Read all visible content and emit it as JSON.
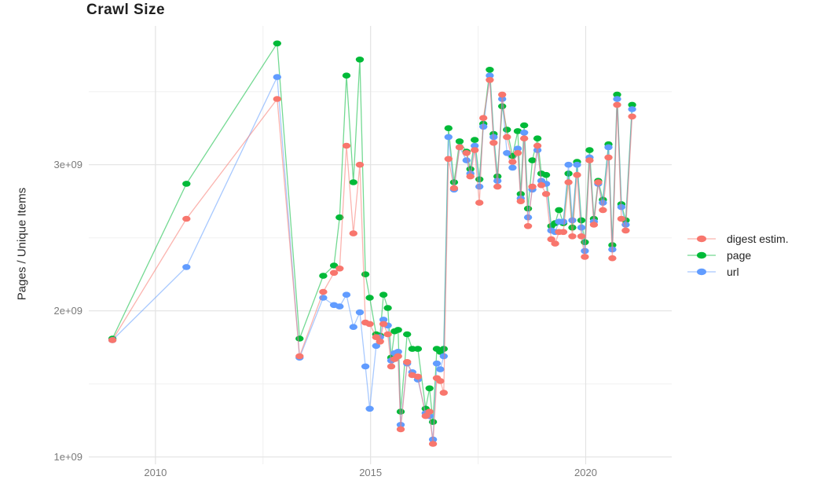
{
  "chart_data": {
    "type": "line",
    "title": "Crawl Size",
    "xlabel": "",
    "ylabel": "Pages / Unique Items",
    "legend_position": "right",
    "grid": true,
    "xlim": [
      2008.45,
      2022.0
    ],
    "ylim_e9": [
      0.95,
      3.95
    ],
    "x_ticks": {
      "values": [
        2010,
        2015,
        2020
      ],
      "labels": [
        "2010",
        "2015",
        "2020"
      ]
    },
    "y_ticks": {
      "values_e9": [
        1,
        2,
        3
      ],
      "labels": [
        "1e+09",
        "2e+09",
        "3e+09"
      ]
    },
    "x_minor": [
      2012.5,
      2017.5
    ],
    "y_minor_e9": [
      1.5,
      2.5,
      3.5
    ],
    "x": [
      2009.0,
      2010.72,
      2012.83,
      2013.35,
      2013.9,
      2014.15,
      2014.28,
      2014.44,
      2014.6,
      2014.75,
      2014.88,
      2014.98,
      2015.13,
      2015.22,
      2015.3,
      2015.4,
      2015.48,
      2015.56,
      2015.64,
      2015.7,
      2015.85,
      2015.97,
      2016.1,
      2016.28,
      2016.37,
      2016.45,
      2016.54,
      2016.62,
      2016.7,
      2016.81,
      2016.94,
      2017.07,
      2017.23,
      2017.32,
      2017.42,
      2017.53,
      2017.62,
      2017.77,
      2017.86,
      2017.95,
      2018.06,
      2018.17,
      2018.3,
      2018.42,
      2018.49,
      2018.57,
      2018.66,
      2018.76,
      2018.88,
      2018.97,
      2019.08,
      2019.2,
      2019.29,
      2019.38,
      2019.48,
      2019.6,
      2019.69,
      2019.8,
      2019.9,
      2019.98,
      2020.09,
      2020.19,
      2020.29,
      2020.4,
      2020.53,
      2020.62,
      2020.73,
      2020.83,
      2020.93,
      2021.08
    ],
    "series": [
      {
        "name": "digest estim.",
        "color": "#F8766D",
        "values_e9": [
          1.8,
          2.63,
          3.45,
          1.69,
          2.13,
          2.26,
          2.29,
          3.13,
          2.53,
          3.0,
          1.92,
          1.91,
          1.82,
          1.79,
          1.91,
          1.84,
          1.62,
          1.67,
          1.69,
          1.19,
          1.65,
          1.56,
          1.55,
          1.28,
          1.31,
          1.09,
          1.54,
          1.52,
          1.44,
          3.04,
          2.84,
          3.12,
          3.08,
          2.92,
          3.1,
          2.74,
          3.32,
          3.58,
          3.15,
          2.85,
          3.48,
          3.19,
          3.02,
          3.08,
          2.75,
          3.18,
          2.58,
          2.85,
          3.13,
          2.86,
          2.8,
          2.49,
          2.46,
          2.54,
          2.54,
          2.88,
          2.51,
          2.93,
          2.51,
          2.37,
          3.03,
          2.59,
          2.88,
          2.69,
          3.05,
          2.36,
          3.41,
          2.63,
          2.55,
          3.33
        ]
      },
      {
        "name": "page",
        "color": "#00BA38",
        "values_e9": [
          1.81,
          2.87,
          3.83,
          1.81,
          2.24,
          2.31,
          2.64,
          3.61,
          2.88,
          3.72,
          2.25,
          2.09,
          1.84,
          1.83,
          2.11,
          2.02,
          1.68,
          1.86,
          1.87,
          1.31,
          1.84,
          1.74,
          1.74,
          1.33,
          1.47,
          1.24,
          1.74,
          1.72,
          1.74,
          3.25,
          2.88,
          3.16,
          3.09,
          2.97,
          3.17,
          2.9,
          3.28,
          3.65,
          3.21,
          2.92,
          3.4,
          3.24,
          3.06,
          3.23,
          2.8,
          3.27,
          2.7,
          3.03,
          3.18,
          2.94,
          2.93,
          2.58,
          2.6,
          2.69,
          2.6,
          2.94,
          2.57,
          3.02,
          2.62,
          2.47,
          3.1,
          2.63,
          2.89,
          2.76,
          3.14,
          2.45,
          3.48,
          2.73,
          2.62,
          3.41
        ]
      },
      {
        "name": "url",
        "color": "#619CFF",
        "values_e9": [
          1.8,
          2.3,
          3.6,
          1.68,
          2.09,
          2.04,
          2.03,
          2.11,
          1.89,
          1.99,
          1.62,
          1.33,
          1.76,
          1.82,
          1.94,
          1.9,
          1.66,
          1.71,
          1.72,
          1.22,
          1.64,
          1.58,
          1.53,
          1.3,
          1.28,
          1.12,
          1.64,
          1.6,
          1.69,
          3.19,
          2.83,
          3.12,
          3.03,
          2.94,
          3.13,
          2.85,
          3.26,
          3.61,
          3.19,
          2.89,
          3.45,
          3.08,
          2.98,
          3.11,
          2.77,
          3.22,
          2.64,
          2.83,
          3.1,
          2.89,
          2.87,
          2.55,
          2.54,
          2.61,
          2.61,
          3.0,
          2.62,
          3.0,
          2.57,
          2.41,
          3.05,
          2.61,
          2.87,
          2.74,
          3.12,
          2.42,
          3.45,
          2.71,
          2.59,
          3.38
        ]
      }
    ]
  }
}
